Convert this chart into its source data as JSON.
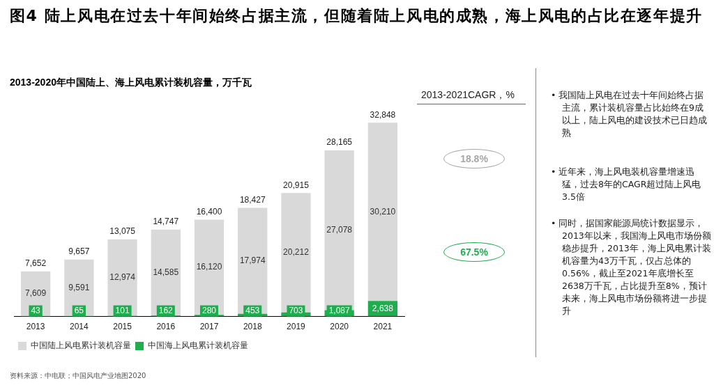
{
  "chart_data": {
    "type": "bar",
    "stacked": true,
    "title": "图4 陆上风电在过去十年间始终占据主流，但随着陆上风电的成熟，海上风电的占比在逐年提升",
    "subtitle": "2013-2020年中国陆上、海上风电累计装机容量，万千瓦",
    "categories": [
      "2013",
      "2014",
      "2015",
      "2016",
      "2017",
      "2018",
      "2019",
      "2020",
      "2021"
    ],
    "series": [
      {
        "name": "中国海上风电累计装机容量",
        "color": "#1fae4e",
        "values": [
          43,
          65,
          101,
          162,
          280,
          453,
          703,
          1087,
          2638
        ],
        "value_labels": [
          "43",
          "65",
          "101",
          "162",
          "280",
          "453",
          "703",
          "1,087",
          "2,638"
        ]
      },
      {
        "name": "中国陆上风电累计装机容量",
        "color": "#d9d9d9",
        "values": [
          7609,
          9591,
          12974,
          14585,
          16120,
          17974,
          20212,
          27078,
          30210
        ],
        "value_labels": [
          "7,609",
          "9,591",
          "12,974",
          "14,585",
          "16,120",
          "17,974",
          "20,212",
          "27,078",
          "30,210"
        ]
      }
    ],
    "totals": [
      "7,652",
      "9,657",
      "13,075",
      "14,747",
      "16,400",
      "18,427",
      "20,915",
      "28,165",
      "32,848"
    ],
    "legend": "bottom left",
    "grid": false,
    "annotations": [
      "2013-2021CAGR，%",
      "18.8%",
      "67.5%",
      "• 我国陆上风电在过去十年间始终占据主流，累计装机容量占比始终在9成以上，陆上风电的建设技术已日趋成熟",
      "• 近年来，海上风电装机容量增速迅猛，过去8年的CAGR超过陆上风电3.5倍",
      "• 同时，据国家能源局统计数据显示，2013年以来，我国海上风电市场份额稳步提升，2013年，海上风电累计装机容量为43万千瓦，仅占总体的0.56%，截止至2021年底增长至2638万千瓦，占比提升至8%，预计未来，海上风电市场份额将进一步提升",
      "资料来源：中电联；中国风电产业地图2020"
    ]
  }
}
